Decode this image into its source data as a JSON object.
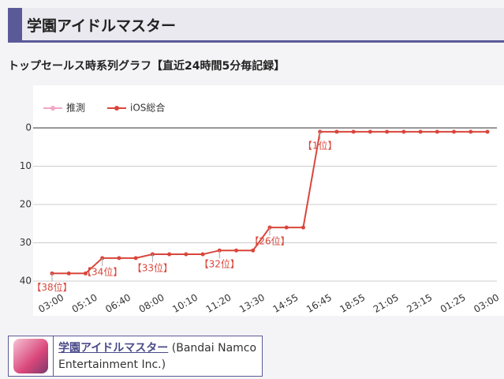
{
  "header": {
    "title": "学園アイドルマスター"
  },
  "section_title": "トップセールス時系列グラフ【直近24時間5分毎記録】",
  "chart_data": {
    "type": "line",
    "categories": [
      "03:00",
      null,
      "05:10",
      null,
      "06:40",
      null,
      "08:00",
      null,
      "10:10",
      null,
      "11:20",
      null,
      "13:30",
      null,
      "14:55",
      null,
      "16:45",
      null,
      "18:55",
      null,
      "21:05",
      null,
      "23:15",
      null,
      "01:25",
      null,
      "03:00"
    ],
    "series": [
      {
        "name": "推測",
        "color": "#f4a6c6",
        "values": [
          null,
          null,
          null,
          null,
          null,
          null,
          null,
          null,
          null,
          null,
          null,
          null,
          null,
          null,
          null,
          null,
          null,
          null,
          null,
          null,
          null,
          null,
          null,
          null,
          null,
          null,
          null
        ]
      },
      {
        "name": "iOS総合",
        "color": "#d9463b",
        "values": [
          38,
          38,
          38,
          34,
          34,
          34,
          33,
          33,
          33,
          33,
          32,
          32,
          32,
          26,
          26,
          26,
          1,
          1,
          1,
          1,
          1,
          1,
          1,
          1,
          1,
          1,
          1
        ],
        "value_labels": [
          "【38位】",
          null,
          null,
          "【34位】",
          null,
          null,
          "【33位】",
          null,
          null,
          null,
          "【32位】",
          null,
          null,
          "【26位】",
          null,
          null,
          "【1位】",
          null,
          null,
          null,
          null,
          null,
          null,
          null,
          null,
          null,
          null
        ]
      }
    ],
    "ylim": [
      0,
      40
    ],
    "yticks": [
      0,
      10,
      20,
      30,
      40
    ],
    "y_inverted": true,
    "grid": true,
    "legend": "top-left"
  },
  "app_card": {
    "name": "学園アイドルマスター",
    "publisher": "(Bandai Namco Entertainment Inc.)"
  }
}
